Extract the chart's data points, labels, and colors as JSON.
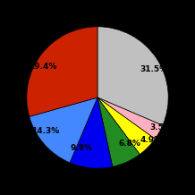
{
  "slices": [
    31.5,
    3.5,
    4.9,
    6.8,
    9.8,
    14.3,
    29.4
  ],
  "colors": [
    "#c0c0c0",
    "#ffb0c0",
    "#ffff00",
    "#228b22",
    "#0000ee",
    "#4488ff",
    "#cc2200"
  ],
  "labels": [
    "31.5%",
    "3.5%",
    "4.9%",
    "6.8%",
    "9.8%",
    "14.3%",
    "29.4%"
  ],
  "background_color": "#000000",
  "startangle": 90,
  "figsize": [
    2.2,
    2.2
  ],
  "dpi": 100
}
